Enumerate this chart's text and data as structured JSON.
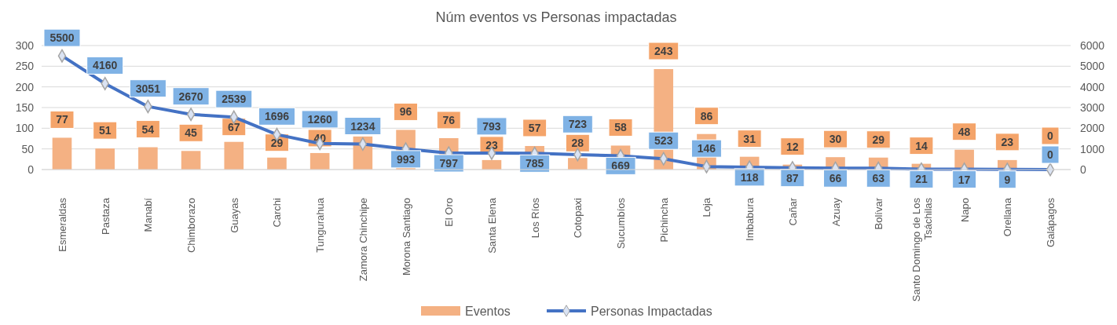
{
  "chart_data": {
    "type": "bar",
    "title": "Núm eventos vs Personas impactadas",
    "categories": [
      "Esmeraldas",
      "Pastaza",
      "Manabí",
      "Chimborazo",
      "Guayas",
      "Carchi",
      "Tungurahua",
      "Zamora Chinchipe",
      "Morona Santiago",
      "El Oro",
      "Santa Elena",
      "Los Ríos",
      "Cotopaxi",
      "Sucumbíos",
      "Pichincha",
      "Loja",
      "Imbabura",
      "Cañar",
      "Azuay",
      "Bolívar",
      "Santo Domingo de Los Tsáchilas",
      "Napo",
      "Orellana",
      "Galápagos"
    ],
    "series": [
      {
        "name": "Eventos",
        "color": "#f4b183",
        "values": [
          77,
          51,
          54,
          45,
          67,
          29,
          40,
          80,
          96,
          76,
          23,
          57,
          28,
          58,
          243,
          86,
          31,
          12,
          30,
          29,
          14,
          48,
          23,
          0
        ],
        "value_labels": [
          "77",
          "51",
          "54",
          "45",
          "67",
          "29",
          "40",
          null,
          "96",
          "76",
          "23",
          "57",
          "28",
          "58",
          "243",
          "86",
          "31",
          "12",
          "30",
          "29",
          "14",
          "48",
          "23",
          "0"
        ]
      },
      {
        "name": "Personas Impactadas",
        "type": "line",
        "axis": "y2",
        "color": "#4472c4",
        "marker": "diamond",
        "values": [
          5500,
          4160,
          3051,
          2670,
          2539,
          1696,
          1260,
          1234,
          993,
          797,
          793,
          785,
          723,
          669,
          523,
          146,
          118,
          87,
          66,
          63,
          21,
          17,
          9,
          0
        ]
      }
    ],
    "ylim": [
      0,
      300
    ],
    "yticks": [
      0,
      50,
      100,
      150,
      200,
      250,
      300
    ],
    "y2lim": [
      0,
      6000
    ],
    "y2ticks": [
      0,
      1000,
      2000,
      3000,
      4000,
      5000,
      6000
    ],
    "data_labels": true,
    "grid": "y",
    "legend": "bottom"
  }
}
